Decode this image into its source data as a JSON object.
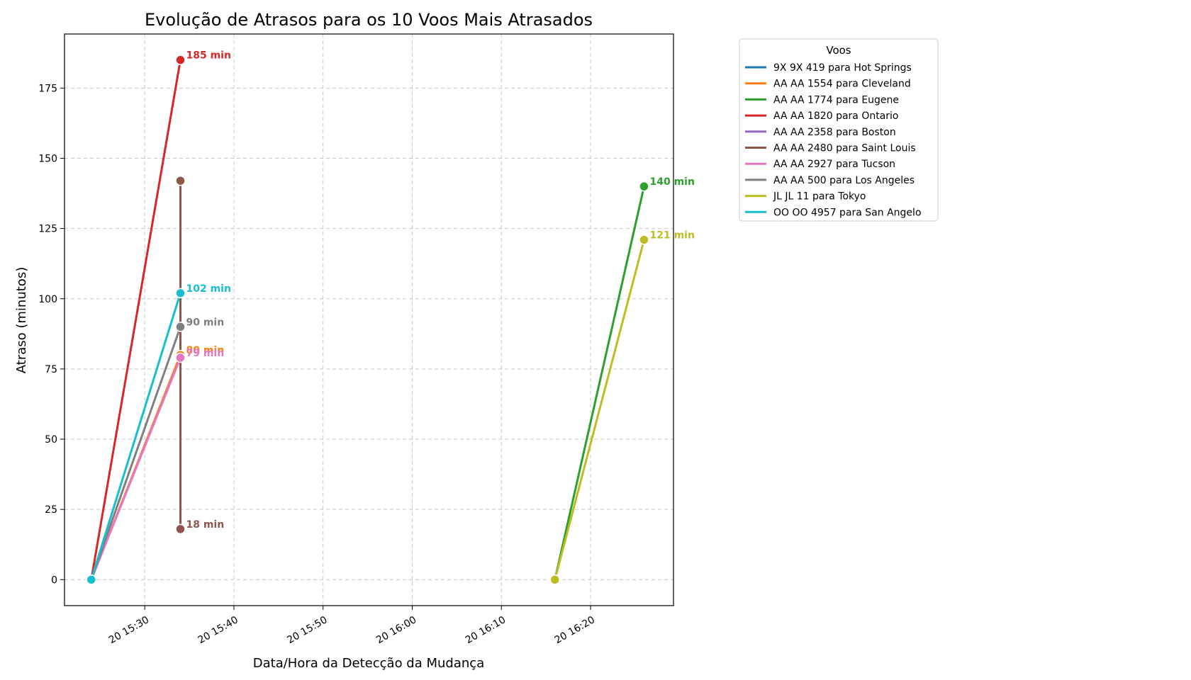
{
  "chart_data": {
    "type": "line",
    "title": "Evolução de Atrasos para os 10 Voos Mais Atrasados",
    "xlabel": "Data/Hora da Detecção da Mudança",
    "ylabel": "Atraso (minutos)",
    "x_ticks": [
      "20 15:30",
      "20 15:40",
      "20 15:50",
      "20 16:00",
      "20 16:10",
      "20 16:20"
    ],
    "x_tick_minutes": [
      930,
      940,
      950,
      960,
      970,
      980
    ],
    "xlim_minutes": [
      921,
      989.3
    ],
    "y_ticks": [
      0,
      25,
      50,
      75,
      100,
      125,
      150,
      175
    ],
    "ylim": [
      -9.25,
      194.25
    ],
    "grid": true,
    "legend": {
      "title": "Voos",
      "placement": "outside-right"
    },
    "series": [
      {
        "name": "9X 9X 419 para Hot Springs",
        "color": "#1f77b4",
        "points": [],
        "labels": []
      },
      {
        "name": "AA AA 1554 para Cleveland",
        "color": "#ff7f0e",
        "points": [
          [
            924,
            0
          ],
          [
            934,
            80
          ]
        ],
        "labels": [
          "",
          "80 min"
        ]
      },
      {
        "name": "AA AA 1774 para Eugene",
        "color": "#2ca02c",
        "points": [
          [
            976,
            0
          ],
          [
            986,
            140
          ]
        ],
        "labels": [
          "",
          "140 min"
        ]
      },
      {
        "name": "AA AA 1820 para Ontario",
        "color": "#d62728",
        "points": [
          [
            924,
            0
          ],
          [
            934,
            185
          ]
        ],
        "labels": [
          "",
          "185 min"
        ]
      },
      {
        "name": "AA AA 2358 para Boston",
        "color": "#9467bd",
        "points": [],
        "labels": []
      },
      {
        "name": "AA AA 2480 para Saint Louis",
        "color": "#8c564b",
        "points": [
          [
            934,
            142
          ],
          [
            934,
            18
          ]
        ],
        "labels": [
          "",
          "18 min"
        ]
      },
      {
        "name": "AA AA 2927 para Tucson",
        "color": "#e377c2",
        "points": [
          [
            924,
            0
          ],
          [
            934,
            79
          ]
        ],
        "labels": [
          "",
          "79 min"
        ]
      },
      {
        "name": "AA AA 500 para Los Angeles",
        "color": "#7f7f7f",
        "points": [
          [
            924,
            0
          ],
          [
            934,
            90
          ]
        ],
        "labels": [
          "",
          "90 min"
        ]
      },
      {
        "name": "JL JL 11 para Tokyo",
        "color": "#bcbd22",
        "points": [
          [
            976,
            0
          ],
          [
            986,
            121
          ]
        ],
        "labels": [
          "",
          "121 min"
        ]
      },
      {
        "name": "OO OO 4957 para San Angelo",
        "color": "#17becf",
        "points": [
          [
            924,
            0
          ],
          [
            934,
            102
          ]
        ],
        "labels": [
          "",
          "102 min"
        ]
      }
    ]
  }
}
